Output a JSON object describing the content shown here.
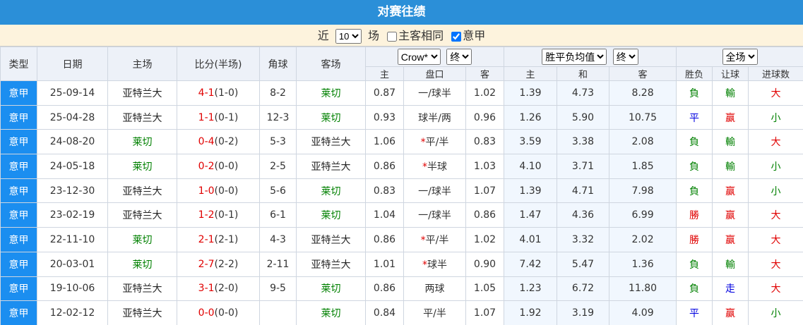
{
  "title": "对赛往绩",
  "filter": {
    "prefix": "近",
    "count": "10",
    "suffix": "场",
    "same_home": {
      "label": "主客相同",
      "checked": false
    },
    "league": {
      "label": "意甲",
      "checked": true
    }
  },
  "header": {
    "type": "类型",
    "date": "日期",
    "home": "主场",
    "score": "比分(半场)",
    "corners": "角球",
    "away": "客场",
    "ah_company": "Crow*",
    "ah_stage": "终",
    "odds_type": "胜平负均值",
    "odds_stage": "终",
    "scope": "全场",
    "sub": [
      "主",
      "盘口",
      "客",
      "主",
      "和",
      "客",
      "胜负",
      "让球",
      "进球数"
    ]
  },
  "rows": [
    {
      "league": "意甲",
      "date": "25-09-14",
      "home": {
        "text": "亚特兰大",
        "color": "#222"
      },
      "score": "4-1",
      "half": "(1-0)",
      "corners": "8-2",
      "away": {
        "text": "莱切",
        "color": "#008000"
      },
      "ah_home": "0.87",
      "handicap": "一/球半",
      "ah_away": "1.02",
      "odds_home": "1.39",
      "odds_draw": "4.73",
      "odds_away": "8.28",
      "result": {
        "text": "負",
        "color": "#008000"
      },
      "ah_result": {
        "text": "輸",
        "color": "#008000"
      },
      "ou_result": {
        "text": "大",
        "color": "#e00000"
      }
    },
    {
      "league": "意甲",
      "date": "25-04-28",
      "home": {
        "text": "亚特兰大",
        "color": "#222"
      },
      "score": "1-1",
      "half": "(0-1)",
      "corners": "12-3",
      "away": {
        "text": "莱切",
        "color": "#008000"
      },
      "ah_home": "0.93",
      "handicap": "球半/两",
      "ah_away": "0.96",
      "odds_home": "1.26",
      "odds_draw": "5.90",
      "odds_away": "10.75",
      "result": {
        "text": "平",
        "color": "#0000e0"
      },
      "ah_result": {
        "text": "赢",
        "color": "#e00000"
      },
      "ou_result": {
        "text": "小",
        "color": "#008000"
      }
    },
    {
      "league": "意甲",
      "date": "24-08-20",
      "home": {
        "text": "莱切",
        "color": "#008000"
      },
      "score": "0-4",
      "half": "(0-2)",
      "corners": "5-3",
      "away": {
        "text": "亚特兰大",
        "color": "#222"
      },
      "ah_home": "1.06",
      "flag": "*",
      "handicap": "平/半",
      "ah_away": "0.83",
      "odds_home": "3.59",
      "odds_draw": "3.38",
      "odds_away": "2.08",
      "result": {
        "text": "負",
        "color": "#008000"
      },
      "ah_result": {
        "text": "輸",
        "color": "#008000"
      },
      "ou_result": {
        "text": "大",
        "color": "#e00000"
      }
    },
    {
      "league": "意甲",
      "date": "24-05-18",
      "home": {
        "text": "莱切",
        "color": "#008000"
      },
      "score": "0-2",
      "half": "(0-0)",
      "corners": "2-5",
      "away": {
        "text": "亚特兰大",
        "color": "#222"
      },
      "ah_home": "0.86",
      "flag": "*",
      "handicap": "半球",
      "ah_away": "1.03",
      "odds_home": "4.10",
      "odds_draw": "3.71",
      "odds_away": "1.85",
      "result": {
        "text": "負",
        "color": "#008000"
      },
      "ah_result": {
        "text": "輸",
        "color": "#008000"
      },
      "ou_result": {
        "text": "小",
        "color": "#008000"
      }
    },
    {
      "league": "意甲",
      "date": "23-12-30",
      "home": {
        "text": "亚特兰大",
        "color": "#222"
      },
      "score": "1-0",
      "half": "(0-0)",
      "corners": "5-6",
      "away": {
        "text": "莱切",
        "color": "#008000"
      },
      "ah_home": "0.83",
      "handicap": "一/球半",
      "ah_away": "1.07",
      "odds_home": "1.39",
      "odds_draw": "4.71",
      "odds_away": "7.98",
      "result": {
        "text": "負",
        "color": "#008000"
      },
      "ah_result": {
        "text": "赢",
        "color": "#e00000"
      },
      "ou_result": {
        "text": "小",
        "color": "#008000"
      }
    },
    {
      "league": "意甲",
      "date": "23-02-19",
      "home": {
        "text": "亚特兰大",
        "color": "#222"
      },
      "score": "1-2",
      "half": "(0-1)",
      "corners": "6-1",
      "away": {
        "text": "莱切",
        "color": "#008000"
      },
      "ah_home": "1.04",
      "handicap": "一/球半",
      "ah_away": "0.86",
      "odds_home": "1.47",
      "odds_draw": "4.36",
      "odds_away": "6.99",
      "result": {
        "text": "勝",
        "color": "#e00000"
      },
      "ah_result": {
        "text": "赢",
        "color": "#e00000"
      },
      "ou_result": {
        "text": "大",
        "color": "#e00000"
      }
    },
    {
      "league": "意甲",
      "date": "22-11-10",
      "home": {
        "text": "莱切",
        "color": "#008000"
      },
      "score": "2-1",
      "half": "(2-1)",
      "corners": "4-3",
      "away": {
        "text": "亚特兰大",
        "color": "#222"
      },
      "ah_home": "0.86",
      "flag": "*",
      "handicap": "平/半",
      "ah_away": "1.02",
      "odds_home": "4.01",
      "odds_draw": "3.32",
      "odds_away": "2.02",
      "result": {
        "text": "勝",
        "color": "#e00000"
      },
      "ah_result": {
        "text": "赢",
        "color": "#e00000"
      },
      "ou_result": {
        "text": "大",
        "color": "#e00000"
      }
    },
    {
      "league": "意甲",
      "date": "20-03-01",
      "home": {
        "text": "莱切",
        "color": "#008000"
      },
      "score": "2-7",
      "half": "(2-2)",
      "corners": "2-11",
      "away": {
        "text": "亚特兰大",
        "color": "#222"
      },
      "ah_home": "1.01",
      "flag": "*",
      "handicap": "球半",
      "ah_away": "0.90",
      "odds_home": "7.42",
      "odds_draw": "5.47",
      "odds_away": "1.36",
      "result": {
        "text": "負",
        "color": "#008000"
      },
      "ah_result": {
        "text": "輸",
        "color": "#008000"
      },
      "ou_result": {
        "text": "大",
        "color": "#e00000"
      }
    },
    {
      "league": "意甲",
      "date": "19-10-06",
      "home": {
        "text": "亚特兰大",
        "color": "#222"
      },
      "score": "3-1",
      "half": "(2-0)",
      "corners": "9-5",
      "away": {
        "text": "莱切",
        "color": "#008000"
      },
      "ah_home": "0.86",
      "handicap": "两球",
      "ah_away": "1.05",
      "odds_home": "1.23",
      "odds_draw": "6.72",
      "odds_away": "11.80",
      "result": {
        "text": "負",
        "color": "#008000"
      },
      "ah_result": {
        "text": "走",
        "color": "#0000e0"
      },
      "ou_result": {
        "text": "大",
        "color": "#e00000"
      }
    },
    {
      "league": "意甲",
      "date": "12-02-12",
      "home": {
        "text": "亚特兰大",
        "color": "#222"
      },
      "score": "0-0",
      "half": "(0-0)",
      "away": {
        "text": "莱切",
        "color": "#008000"
      },
      "ah_home": "0.84",
      "handicap": "平/半",
      "ah_away": "1.07",
      "odds_home": "1.92",
      "odds_draw": "3.19",
      "odds_away": "4.09",
      "result": {
        "text": "平",
        "color": "#0000e0"
      },
      "ah_result": {
        "text": "赢",
        "color": "#e00000"
      },
      "ou_result": {
        "text": "小",
        "color": "#008000"
      }
    }
  ]
}
